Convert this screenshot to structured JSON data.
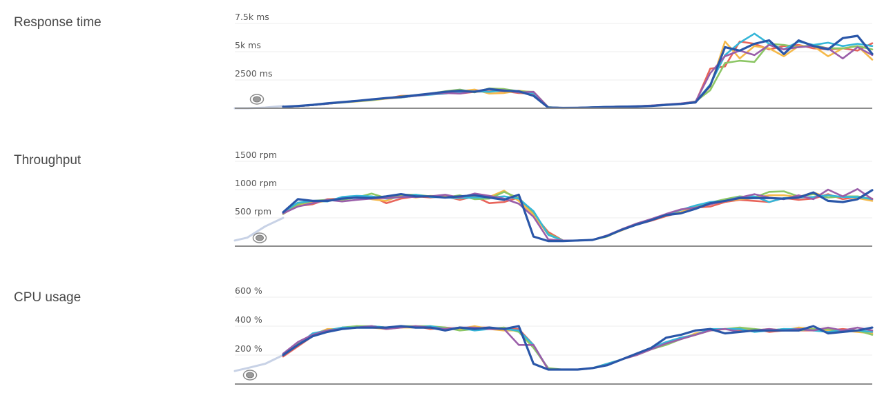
{
  "palette": {
    "series": [
      "#e8645a",
      "#f5b94a",
      "#8cc665",
      "#35b6d8",
      "#9a5ea9",
      "#2a56a8"
    ],
    "lead_in": "#c8d2e6",
    "grid": "#ececec",
    "axis": "#8c8c8c",
    "marker_ring": "#8a8a8a"
  },
  "chart_data": [
    {
      "type": "line",
      "title": "Response time",
      "ylim": [
        0,
        7800
      ],
      "yticks": [
        {
          "value": 2500,
          "label": "2500 ms"
        },
        {
          "value": 5000,
          "label": "5k ms"
        },
        {
          "value": 7500,
          "label": "7.5k ms"
        }
      ],
      "x": [
        0,
        1,
        2,
        3,
        4,
        5,
        6,
        7,
        8,
        9,
        10,
        11,
        12,
        13,
        14,
        15,
        16,
        17,
        18,
        19,
        20,
        21,
        22,
        23,
        24,
        25,
        26,
        27,
        28,
        29,
        30,
        31,
        32,
        33,
        34,
        35,
        36,
        37,
        38,
        39,
        40
      ],
      "lead_in": [
        0,
        0,
        60,
        200
      ],
      "series": [
        {
          "values": [
            130,
            180,
            280,
            400,
            520,
            620,
            760,
            860,
            1100,
            1130,
            1250,
            1400,
            1300,
            1450,
            1500,
            1520,
            1350,
            1300,
            80,
            30,
            40,
            80,
            120,
            150,
            170,
            220,
            300,
            380,
            500,
            3500,
            3700,
            5900,
            5700,
            5200,
            5500,
            5600,
            5300,
            5200,
            5300,
            5100,
            5750
          ]
        },
        {
          "values": [
            130,
            180,
            280,
            400,
            510,
            600,
            700,
            850,
            950,
            1100,
            1250,
            1300,
            1500,
            1650,
            1300,
            1350,
            1550,
            1400,
            90,
            30,
            40,
            70,
            120,
            150,
            170,
            230,
            320,
            400,
            600,
            1900,
            5900,
            4400,
            5500,
            5300,
            4600,
            5500,
            5500,
            4600,
            5300,
            5500,
            4300
          ]
        },
        {
          "values": [
            130,
            180,
            280,
            400,
            500,
            620,
            720,
            870,
            1050,
            1150,
            1300,
            1500,
            1650,
            1400,
            1750,
            1700,
            1500,
            1450,
            100,
            30,
            40,
            80,
            120,
            150,
            170,
            220,
            330,
            380,
            600,
            1600,
            4000,
            4200,
            4100,
            5700,
            5600,
            5400,
            5600,
            5300,
            5300,
            5500,
            5200
          ]
        },
        {
          "values": [
            130,
            180,
            280,
            400,
            520,
            640,
            760,
            900,
            950,
            1100,
            1200,
            1300,
            1450,
            1500,
            1450,
            1600,
            1400,
            1350,
            90,
            30,
            40,
            90,
            130,
            140,
            160,
            230,
            310,
            400,
            580,
            2100,
            4700,
            5800,
            6600,
            5700,
            5200,
            5900,
            5600,
            5800,
            5500,
            5700,
            5500
          ]
        },
        {
          "values": [
            130,
            180,
            280,
            400,
            520,
            640,
            780,
            880,
            980,
            1100,
            1250,
            1350,
            1300,
            1500,
            1700,
            1600,
            1400,
            1450,
            80,
            30,
            40,
            80,
            120,
            150,
            180,
            240,
            330,
            420,
            580,
            3100,
            4600,
            5100,
            4700,
            5600,
            5200,
            5400,
            5500,
            5300,
            4400,
            5400,
            4700
          ]
        },
        {
          "values": [
            130,
            200,
            300,
            430,
            540,
            650,
            780,
            900,
            1000,
            1150,
            1300,
            1450,
            1550,
            1450,
            1700,
            1550,
            1500,
            1100,
            60,
            30,
            40,
            70,
            110,
            140,
            160,
            200,
            300,
            380,
            520,
            2000,
            5400,
            5100,
            5700,
            6000,
            4800,
            6000,
            5500,
            5200,
            6200,
            6400,
            4800
          ]
        }
      ]
    },
    {
      "type": "line",
      "title": "Throughput",
      "ylim": [
        0,
        1580
      ],
      "yticks": [
        {
          "value": 500,
          "label": "500 rpm"
        },
        {
          "value": 1000,
          "label": "1000 rpm"
        },
        {
          "value": 1500,
          "label": "1500 rpm"
        }
      ],
      "x": [
        0,
        1,
        2,
        3,
        4,
        5,
        6,
        7,
        8,
        9,
        10,
        11,
        12,
        13,
        14,
        15,
        16,
        17,
        18,
        19,
        20,
        21,
        22,
        23,
        24,
        25,
        26,
        27,
        28,
        29,
        30,
        31,
        32,
        33,
        34,
        35,
        36,
        37,
        38,
        39,
        40
      ],
      "lead_in": [
        100,
        150,
        350,
        500
      ],
      "series": [
        {
          "values": [
            580,
            710,
            740,
            830,
            840,
            870,
            880,
            760,
            840,
            880,
            860,
            880,
            820,
            880,
            760,
            780,
            860,
            560,
            250,
            100,
            100,
            110,
            180,
            290,
            380,
            450,
            530,
            600,
            680,
            700,
            780,
            820,
            800,
            780,
            850,
            820,
            840,
            920,
            830,
            870,
            840
          ]
        },
        {
          "values": [
            570,
            720,
            770,
            800,
            830,
            870,
            830,
            800,
            900,
            860,
            890,
            880,
            840,
            880,
            870,
            980,
            800,
            560,
            200,
            100,
            100,
            110,
            180,
            280,
            390,
            470,
            560,
            600,
            690,
            750,
            800,
            830,
            850,
            900,
            900,
            870,
            950,
            860,
            880,
            850,
            800
          ]
        },
        {
          "values": [
            570,
            740,
            800,
            820,
            820,
            860,
            930,
            850,
            910,
            910,
            880,
            860,
            900,
            830,
            840,
            960,
            850,
            600,
            220,
            100,
            100,
            110,
            170,
            290,
            400,
            470,
            560,
            640,
            700,
            770,
            830,
            880,
            860,
            960,
            970,
            880,
            920,
            860,
            880,
            880,
            830
          ]
        },
        {
          "values": [
            600,
            770,
            800,
            790,
            870,
            890,
            880,
            840,
            870,
            910,
            870,
            860,
            850,
            860,
            860,
            880,
            840,
            620,
            200,
            100,
            100,
            110,
            180,
            300,
            380,
            460,
            560,
            640,
            720,
            780,
            800,
            870,
            880,
            780,
            850,
            860,
            870,
            900,
            870,
            870,
            830
          ]
        },
        {
          "values": [
            580,
            700,
            760,
            820,
            790,
            820,
            840,
            850,
            870,
            870,
            880,
            910,
            860,
            930,
            890,
            840,
            750,
            520,
            120,
            100,
            100,
            110,
            190,
            300,
            400,
            480,
            570,
            650,
            680,
            740,
            800,
            860,
            920,
            860,
            830,
            900,
            830,
            1000,
            880,
            1010,
            830
          ]
        },
        {
          "values": [
            600,
            830,
            800,
            800,
            840,
            860,
            850,
            880,
            920,
            880,
            880,
            860,
            880,
            900,
            860,
            820,
            910,
            170,
            90,
            90,
            100,
            110,
            180,
            290,
            380,
            460,
            550,
            580,
            660,
            760,
            800,
            850,
            850,
            850,
            840,
            860,
            950,
            800,
            780,
            830,
            990
          ]
        }
      ]
    },
    {
      "type": "line",
      "title": "CPU usage",
      "ylim": [
        0,
        630
      ],
      "yticks": [
        {
          "value": 200,
          "label": "200 %"
        },
        {
          "value": 400,
          "label": "400 %"
        },
        {
          "value": 600,
          "label": "600 %"
        }
      ],
      "x": [
        0,
        1,
        2,
        3,
        4,
        5,
        6,
        7,
        8,
        9,
        10,
        11,
        12,
        13,
        14,
        15,
        16,
        17,
        18,
        19,
        20,
        21,
        22,
        23,
        24,
        25,
        26,
        27,
        28,
        29,
        30,
        31,
        32,
        33,
        34,
        35,
        36,
        37,
        38,
        39,
        40
      ],
      "lead_in": [
        90,
        110,
        140,
        200
      ],
      "series": [
        {
          "values": [
            190,
            260,
            330,
            370,
            380,
            390,
            400,
            390,
            390,
            400,
            380,
            390,
            380,
            390,
            390,
            380,
            380,
            270,
            100,
            100,
            100,
            110,
            130,
            170,
            210,
            240,
            280,
            320,
            340,
            370,
            380,
            370,
            380,
            360,
            370,
            370,
            370,
            370,
            380,
            370,
            360
          ]
        },
        {
          "values": [
            200,
            280,
            340,
            380,
            380,
            400,
            390,
            380,
            390,
            390,
            390,
            380,
            380,
            400,
            380,
            370,
            370,
            260,
            100,
            100,
            100,
            110,
            140,
            170,
            200,
            240,
            280,
            310,
            350,
            370,
            380,
            380,
            370,
            380,
            370,
            390,
            380,
            370,
            370,
            360,
            350
          ]
        },
        {
          "values": [
            200,
            280,
            340,
            370,
            390,
            400,
            400,
            390,
            400,
            400,
            400,
            390,
            370,
            380,
            380,
            390,
            360,
            250,
            110,
            100,
            100,
            110,
            130,
            170,
            210,
            240,
            270,
            310,
            340,
            370,
            380,
            390,
            380,
            370,
            380,
            370,
            380,
            380,
            360,
            370,
            340
          ]
        },
        {
          "values": [
            210,
            270,
            350,
            370,
            390,
            390,
            400,
            390,
            400,
            390,
            400,
            380,
            390,
            370,
            380,
            380,
            370,
            270,
            100,
            100,
            100,
            110,
            140,
            170,
            210,
            250,
            290,
            320,
            340,
            380,
            380,
            380,
            360,
            370,
            380,
            380,
            370,
            360,
            370,
            370,
            360
          ]
        },
        {
          "values": [
            210,
            290,
            340,
            370,
            380,
            390,
            400,
            380,
            390,
            400,
            390,
            380,
            390,
            390,
            380,
            380,
            270,
            270,
            100,
            100,
            100,
            110,
            130,
            170,
            200,
            240,
            280,
            310,
            340,
            370,
            380,
            360,
            370,
            380,
            370,
            380,
            370,
            390,
            370,
            390,
            370
          ]
        },
        {
          "values": [
            200,
            270,
            330,
            360,
            380,
            390,
            390,
            390,
            400,
            390,
            390,
            370,
            390,
            380,
            390,
            380,
            400,
            140,
            100,
            100,
            100,
            110,
            130,
            170,
            210,
            250,
            320,
            340,
            370,
            380,
            350,
            360,
            370,
            370,
            370,
            370,
            400,
            350,
            360,
            370,
            390
          ]
        }
      ]
    }
  ]
}
